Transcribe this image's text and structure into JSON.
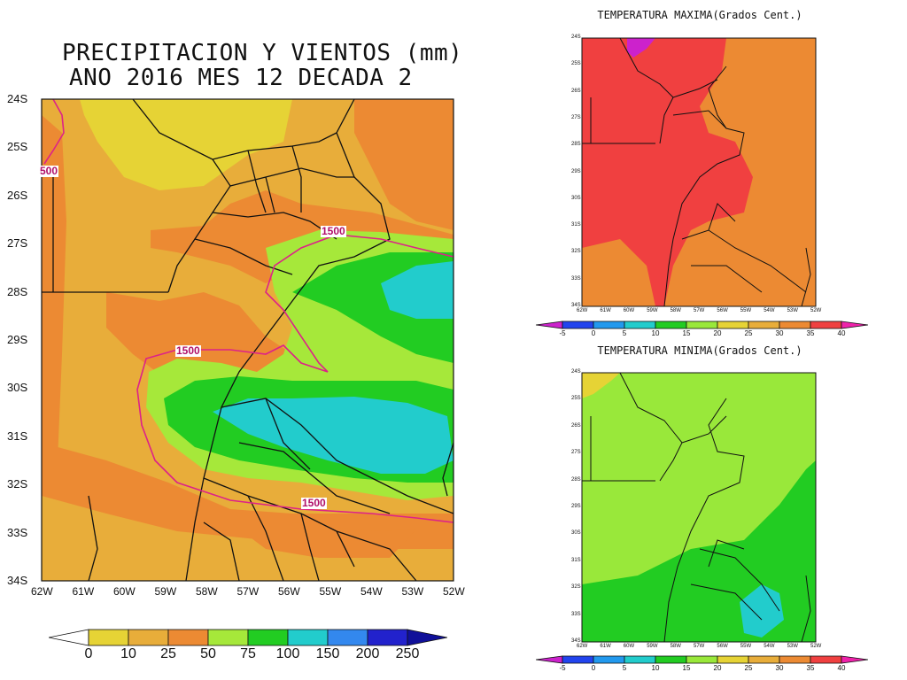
{
  "main_panel": {
    "title_line1": "PRECIPITACION Y VIENTOS (mm)",
    "title_line2": "ANO 2016 MES 12 DECADA 2",
    "lat_labels": [
      "24S",
      "25S",
      "26S",
      "27S",
      "28S",
      "29S",
      "30S",
      "31S",
      "32S",
      "33S",
      "34S"
    ],
    "lon_labels": [
      "62W",
      "61W",
      "60W",
      "59W",
      "58W",
      "57W",
      "56W",
      "55W",
      "54W",
      "53W",
      "52W"
    ],
    "contour_labels": [
      "1500",
      "1500",
      "1500",
      "500"
    ],
    "colorbar": {
      "labels": [
        "0",
        "10",
        "25",
        "50",
        "75",
        "100",
        "150",
        "200",
        "250"
      ],
      "colors": [
        "#ffffff",
        "#e6d335",
        "#e8ad3a",
        "#ec8a33",
        "#a6e83a",
        "#22cc22",
        "#22cccc",
        "#3388ee",
        "#2222cc",
        "#101099"
      ]
    }
  },
  "tmax_panel": {
    "title": "TEMPERATURA MAXIMA(Grados Cent.)",
    "colorbar": {
      "labels": [
        "-5",
        "0",
        "5",
        "10",
        "15",
        "20",
        "25",
        "30",
        "35",
        "40"
      ],
      "colors": [
        "#cc22cc",
        "#2244ee",
        "#2299ee",
        "#22cccc",
        "#22cc22",
        "#99e83a",
        "#e6d335",
        "#e8ad3a",
        "#ec8a33",
        "#f04040",
        "#ee22aa"
      ]
    }
  },
  "tmin_panel": {
    "title": "TEMPERATURA MINIMA(Grados Cent.)",
    "colorbar": {
      "labels": [
        "-5",
        "0",
        "5",
        "10",
        "15",
        "20",
        "25",
        "30",
        "35",
        "40"
      ],
      "colors": [
        "#cc22cc",
        "#2244ee",
        "#2299ee",
        "#22cccc",
        "#22cc22",
        "#99e83a",
        "#e6d335",
        "#e8ad3a",
        "#ec8a33",
        "#f04040",
        "#ee22aa"
      ]
    }
  },
  "small_lat_labels": [
    "24S",
    "25S",
    "26S",
    "27S",
    "28S",
    "29S",
    "30S",
    "31S",
    "32S",
    "33S",
    "34S"
  ],
  "small_lon_labels": [
    "62W",
    "61W",
    "60W",
    "59W",
    "58W",
    "57W",
    "56W",
    "55W",
    "54W",
    "53W",
    "52W"
  ]
}
